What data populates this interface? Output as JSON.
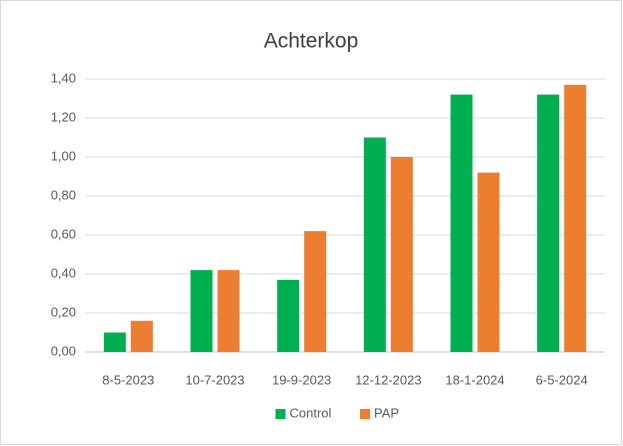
{
  "chart_data": {
    "type": "bar",
    "title": "Achterkop",
    "categories": [
      "8-5-2023",
      "10-7-2023",
      "19-9-2023",
      "12-12-2023",
      "18-1-2024",
      "6-5-2024"
    ],
    "series": [
      {
        "name": "Control",
        "color": "#00b050",
        "values": [
          0.1,
          0.42,
          0.37,
          1.1,
          1.32,
          1.32
        ]
      },
      {
        "name": "PAP",
        "color": "#ed7d31",
        "values": [
          0.16,
          0.42,
          0.62,
          1.0,
          0.92,
          1.37
        ]
      }
    ],
    "ylim": [
      0,
      1.4
    ],
    "yticks": [
      {
        "value": 0,
        "label": "0,00"
      },
      {
        "value": 0.2,
        "label": "0,20"
      },
      {
        "value": 0.4,
        "label": "0,40"
      },
      {
        "value": 0.6,
        "label": "0,60"
      },
      {
        "value": 0.8,
        "label": "0,80"
      },
      {
        "value": 1.0,
        "label": "1,00"
      },
      {
        "value": 1.2,
        "label": "1,20"
      },
      {
        "value": 1.4,
        "label": "1,40"
      }
    ],
    "grid": true,
    "legend": "bottom"
  }
}
